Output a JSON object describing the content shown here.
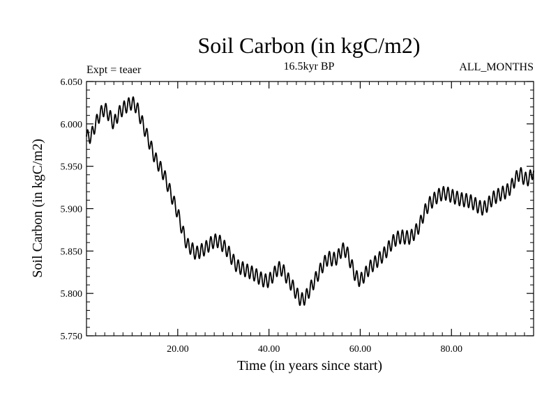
{
  "chart_data": {
    "type": "line",
    "title": "Soil Carbon (in kgC/m2)",
    "subtitle": "16.5kyr BP",
    "left_note": "Expt = teaer",
    "right_note": "ALL_MONTHS",
    "xlabel": "Time (in years since start)",
    "ylabel": "Soil Carbon (in kgC/m2)",
    "xlim": [
      0,
      98
    ],
    "ylim": [
      5.75,
      6.05
    ],
    "x_ticks": [
      20,
      40,
      60,
      80
    ],
    "x_tick_labels": [
      "20.00",
      "40.00",
      "60.00",
      "80.00"
    ],
    "y_ticks": [
      5.75,
      5.8,
      5.85,
      5.9,
      5.95,
      6.0,
      6.05
    ],
    "y_tick_labels": [
      "5.750",
      "5.800",
      "5.850",
      "5.900",
      "5.950",
      "6.000",
      "6.050"
    ],
    "grid": false,
    "line_color": "#000000",
    "series": [
      {
        "x": [
          0,
          1,
          2,
          3,
          4,
          5,
          6,
          7,
          8,
          9,
          10,
          11,
          12,
          13,
          14,
          15,
          16,
          17,
          18,
          19,
          20,
          21,
          22,
          23,
          24,
          25,
          26,
          27,
          28,
          29,
          30,
          31,
          32,
          33,
          34,
          35,
          36,
          37,
          38,
          39,
          40,
          41,
          42,
          43,
          44,
          45,
          46,
          47,
          48,
          49,
          50,
          51,
          52,
          53,
          54,
          55,
          56,
          57,
          58,
          59,
          60,
          61,
          62,
          63,
          64,
          65,
          66,
          67,
          68,
          69,
          70,
          71,
          72,
          73,
          74,
          75,
          76,
          77,
          78,
          79,
          80,
          81,
          82,
          83,
          84,
          85,
          86,
          87,
          88,
          89,
          90,
          91,
          92,
          93,
          94,
          95,
          96,
          97,
          98
        ],
        "values": [
          5.985,
          5.985,
          6.0,
          6.012,
          6.018,
          6.01,
          6.0,
          6.012,
          6.018,
          6.022,
          6.025,
          6.02,
          6.005,
          5.99,
          5.975,
          5.96,
          5.95,
          5.94,
          5.925,
          5.91,
          5.895,
          5.875,
          5.858,
          5.853,
          5.847,
          5.85,
          5.853,
          5.858,
          5.862,
          5.862,
          5.856,
          5.85,
          5.84,
          5.832,
          5.83,
          5.827,
          5.825,
          5.822,
          5.818,
          5.815,
          5.815,
          5.822,
          5.83,
          5.828,
          5.818,
          5.81,
          5.8,
          5.792,
          5.795,
          5.805,
          5.815,
          5.825,
          5.835,
          5.842,
          5.84,
          5.842,
          5.852,
          5.85,
          5.835,
          5.82,
          5.815,
          5.822,
          5.83,
          5.835,
          5.84,
          5.845,
          5.852,
          5.86,
          5.865,
          5.867,
          5.866,
          5.866,
          5.872,
          5.88,
          5.895,
          5.905,
          5.91,
          5.915,
          5.918,
          5.918,
          5.915,
          5.913,
          5.911,
          5.91,
          5.909,
          5.906,
          5.902,
          5.9,
          5.905,
          5.912,
          5.915,
          5.918,
          5.92,
          5.925,
          5.935,
          5.942,
          5.935,
          5.935,
          5.945
        ],
        "cycle_amplitude": 0.008
      }
    ]
  }
}
